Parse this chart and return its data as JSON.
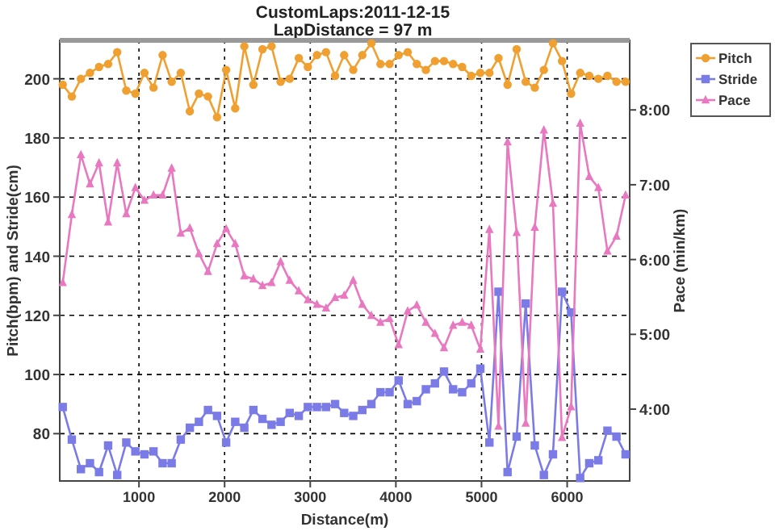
{
  "chart_data": {
    "type": "line",
    "title": "CustomLaps:2011-12-15",
    "subtitle": "LapDistance = 97 m",
    "xlabel": "Distance(m)",
    "ylabel": "Pitch(bpm) and Stride(cm)",
    "y2label": "Pace (min/km)",
    "x": [
      110,
      216,
      322,
      428,
      534,
      640,
      746,
      852,
      958,
      1064,
      1170,
      1276,
      1382,
      1488,
      1594,
      1700,
      1806,
      1912,
      2018,
      2124,
      2230,
      2336,
      2442,
      2548,
      2654,
      2760,
      2866,
      2972,
      3078,
      3184,
      3290,
      3396,
      3502,
      3608,
      3714,
      3820,
      3926,
      4032,
      4138,
      4244,
      4350,
      4456,
      4562,
      4668,
      4774,
      4880,
      4986,
      5092,
      5198,
      5304,
      5410,
      5516,
      5622,
      5728,
      5834,
      5940,
      6046,
      6152,
      6258,
      6364,
      6470,
      6576,
      6682
    ],
    "xlim": [
      75,
      6730
    ],
    "xticks": [
      1000,
      2000,
      3000,
      4000,
      5000,
      6000
    ],
    "ylim": [
      64,
      213
    ],
    "yticks": [
      80,
      100,
      120,
      140,
      160,
      180,
      200
    ],
    "y2lim": [
      3.04,
      8.93
    ],
    "y2ticks": [
      {
        "value": 4,
        "label": "4:00"
      },
      {
        "value": 5,
        "label": "5:00"
      },
      {
        "value": 6,
        "label": "6:00"
      },
      {
        "value": 7,
        "label": "7:00"
      },
      {
        "value": 8,
        "label": "8:00"
      }
    ],
    "grid": true,
    "legend": "top right",
    "line_style": "solid",
    "series": [
      {
        "name": "Pitch",
        "color": "#f0a030",
        "marker": "circle",
        "values": [
          198,
          194,
          200,
          202,
          204,
          205,
          209,
          196,
          195,
          202,
          197,
          208,
          199,
          202,
          189,
          195,
          194,
          187,
          203,
          190,
          211,
          198,
          210,
          211,
          199,
          200,
          207,
          204,
          208,
          209,
          201,
          208,
          203,
          208,
          212,
          205,
          205,
          208,
          209,
          205,
          203,
          206,
          206,
          205,
          204,
          201,
          202,
          202,
          207,
          198,
          210,
          199,
          197,
          203,
          212,
          206,
          195,
          202,
          201,
          200,
          201,
          199,
          199
        ]
      },
      {
        "name": "Stride",
        "color": "#7b7be8",
        "marker": "square",
        "values": [
          89,
          78,
          68,
          70,
          67,
          76,
          66,
          77,
          74,
          73,
          74,
          70,
          70,
          78,
          82,
          84,
          88,
          86,
          77,
          84,
          82,
          88,
          85,
          83,
          84,
          87,
          86,
          89,
          89,
          89,
          90,
          87,
          86,
          88,
          90,
          94,
          94,
          98,
          90,
          91,
          95,
          97,
          101,
          95,
          94,
          97,
          102,
          77,
          128,
          67,
          79,
          124,
          76,
          66,
          73,
          128,
          121,
          65,
          70,
          71,
          81,
          79,
          73
        ]
      },
      {
        "name": "Pace",
        "color": "#e878c0",
        "marker": "triangle",
        "axis": "y2",
        "values": [
          5.69,
          6.6,
          7.4,
          7.01,
          7.29,
          6.5,
          7.29,
          6.61,
          6.96,
          6.79,
          6.86,
          6.86,
          7.22,
          6.35,
          6.42,
          6.08,
          5.84,
          6.21,
          6.41,
          6.21,
          5.78,
          5.74,
          5.65,
          5.69,
          5.97,
          5.72,
          5.58,
          5.46,
          5.4,
          5.35,
          5.49,
          5.52,
          5.72,
          5.4,
          5.25,
          5.16,
          5.21,
          4.86,
          5.31,
          5.39,
          5.16,
          5.01,
          4.82,
          5.12,
          5.16,
          5.12,
          4.8,
          6.4,
          3.77,
          7.57,
          6.36,
          3.81,
          6.43,
          7.73,
          6.75,
          3.62,
          4.03,
          7.82,
          7.11,
          6.96,
          6.11,
          6.31,
          6.86
        ]
      }
    ]
  }
}
